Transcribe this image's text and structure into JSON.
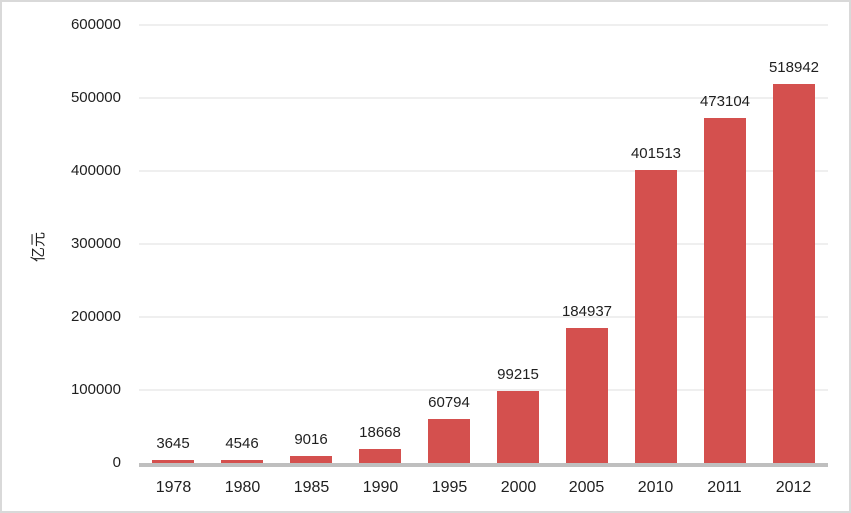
{
  "chart_data": {
    "type": "bar",
    "title": "",
    "categories": [
      "1978",
      "1980",
      "1985",
      "1990",
      "1995",
      "2000",
      "2005",
      "2010",
      "2011",
      "2012"
    ],
    "values": [
      3645,
      4546,
      9016,
      18668,
      60794,
      99215,
      184937,
      401513,
      473104,
      518942
    ],
    "xlabel": "",
    "ylabel": "亿元",
    "ylim": [
      0,
      600000
    ],
    "yticks": [
      0,
      100000,
      200000,
      300000,
      400000,
      500000,
      600000
    ],
    "grid": true,
    "legend": "none",
    "data_labels": true,
    "bar_color": "#d4504e",
    "gridline_color": "#efefef",
    "axis_line_color": "#bfbfbf",
    "text_color": "#1f1f1f"
  }
}
